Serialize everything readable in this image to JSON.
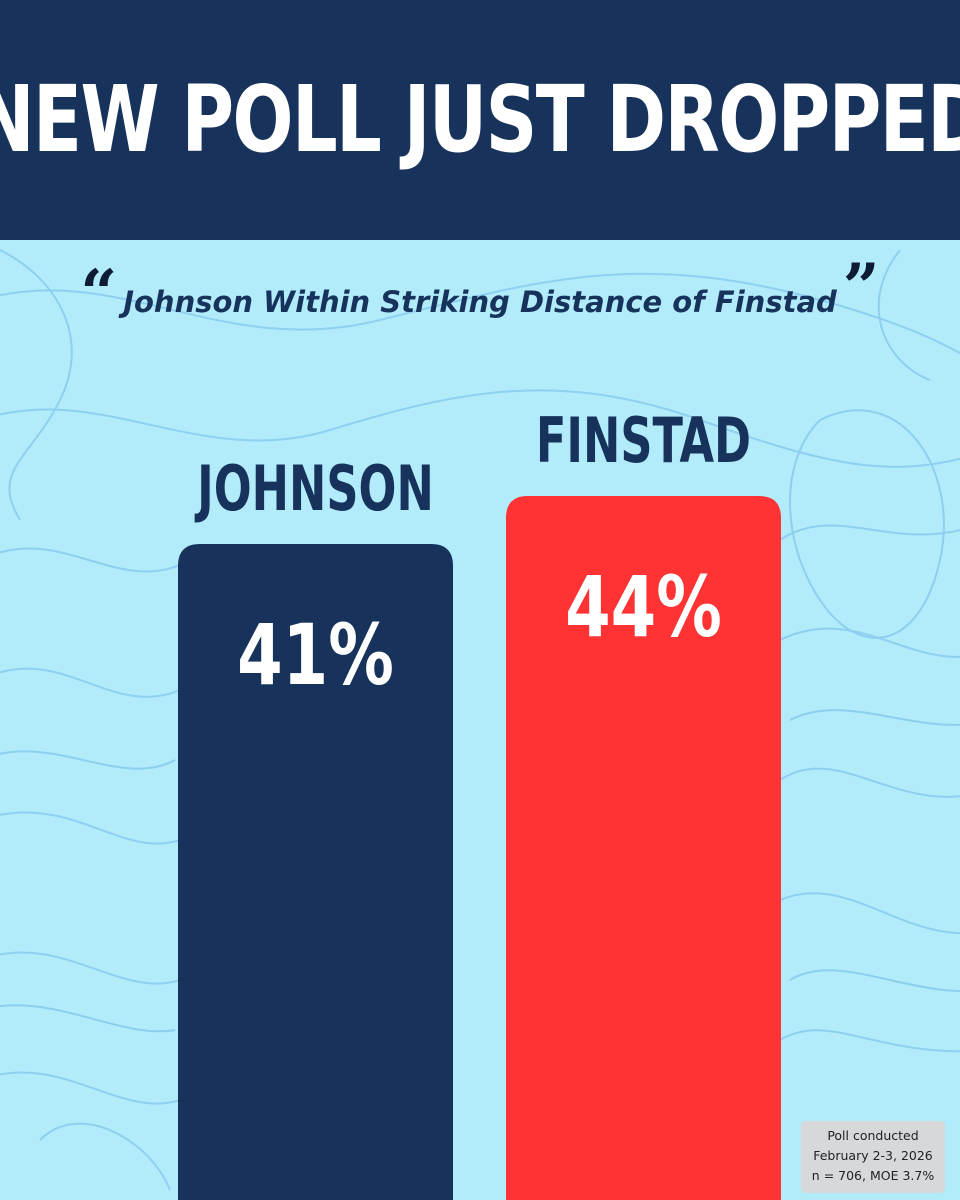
{
  "header": {
    "headline": "NEW POLL JUST DROPPED"
  },
  "quote": {
    "open_mark": "“",
    "text": "Johnson Within Striking Distance of Finstad",
    "close_mark": "”"
  },
  "colors": {
    "navy": "#17335b",
    "red": "#ff3333",
    "background": "#b2ecfb",
    "contour": "#7fc4ec"
  },
  "chart_data": {
    "type": "bar",
    "categories": [
      "JOHNSON",
      "FINSTAD"
    ],
    "values": [
      41,
      44
    ],
    "value_labels": [
      "41%",
      "44%"
    ],
    "colors": [
      "#17335b",
      "#ff3333"
    ],
    "title": "",
    "xlabel": "",
    "ylabel": "",
    "grid": false
  },
  "footnote": {
    "line1": "Poll conducted",
    "line2": "February 2-3, 2026",
    "line3": "n = 706, MOE 3.7%"
  }
}
